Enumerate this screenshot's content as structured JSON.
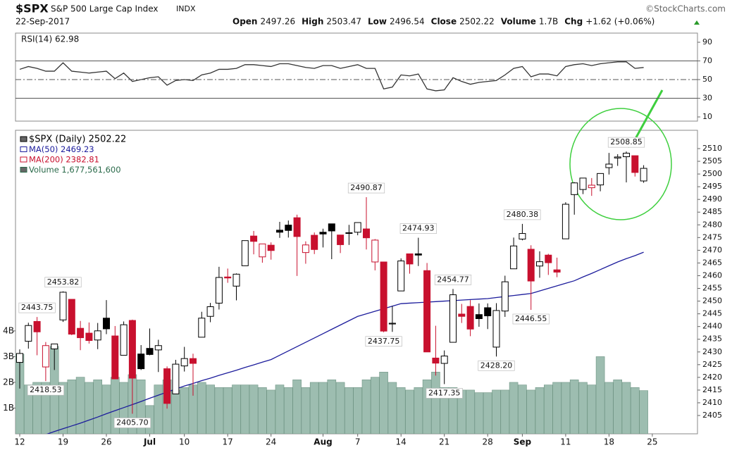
{
  "header": {
    "symbol": "$SPX",
    "name": "S&P 500 Large Cap Index",
    "exchange": "INDX",
    "source": "©StockCharts.com",
    "date": "22-Sep-2017",
    "quote": [
      {
        "label": "Open",
        "value": "2497.26"
      },
      {
        "label": "High",
        "value": "2503.47"
      },
      {
        "label": "Low",
        "value": "2496.54"
      },
      {
        "label": "Close",
        "value": "2502.22"
      },
      {
        "label": "Volume",
        "value": "1.7B"
      },
      {
        "label": "Chg",
        "value": "+1.62 (+0.06%)"
      }
    ]
  },
  "chart_data": {
    "type": "candlestick",
    "rsi_title": "RSI(14) 62.98",
    "legend": [
      "$SPX (Daily) 2502.22",
      "MA(50) 2469.23",
      "MA(200) 2382.81",
      "Volume 1,677,561,600"
    ],
    "categories": [
      "12",
      null,
      null,
      null,
      null,
      "19",
      null,
      null,
      null,
      null,
      "26",
      null,
      null,
      null,
      null,
      "Jul",
      null,
      null,
      null,
      "10",
      null,
      null,
      null,
      null,
      "17",
      null,
      null,
      null,
      null,
      "24",
      null,
      null,
      null,
      null,
      null,
      "Aug",
      null,
      null,
      null,
      "7",
      null,
      null,
      null,
      null,
      "14",
      null,
      null,
      null,
      null,
      "21",
      null,
      null,
      null,
      null,
      "28",
      null,
      null,
      null,
      "Sep",
      null,
      null,
      null,
      null,
      "11",
      null,
      null,
      null,
      null,
      "18",
      null,
      null,
      null,
      null,
      "25"
    ],
    "open": [
      2425.9,
      2434.2,
      2442.0,
      2424.1,
      2431.2,
      2442.6,
      2450.7,
      2439.3,
      2437.4,
      2434.7,
      2443.3,
      2436.3,
      2428.7,
      2442.4,
      2429.2,
      2431.4,
      2430.8,
      2423.4,
      2413.5,
      2424.5,
      2427.4,
      2435.8,
      2444.0,
      2449.2,
      2459.5,
      2455.9,
      2463.9,
      2475.6,
      2467.4,
      2472.0,
      2477.9,
      2479.9,
      2482.8,
      2469.1,
      2475.9,
      2477.1,
      2480.4,
      2476.0,
      2476.9,
      2477.1,
      2478.4,
      2465.4,
      2465.4,
      2441.0,
      2454.0,
      2468.6,
      2468.6,
      2462.0,
      2427.6,
      2425.5,
      2433.8,
      2444.9,
      2447.9,
      2444.7,
      2447.4,
      2431.9,
      2446.1,
      2462.7,
      2474.4,
      2470.4,
      2463.8,
      2468.1,
      2462.3,
      2474.5,
      2491.9,
      2493.9,
      2494.6,
      2495.7,
      2502.5,
      2506.3,
      2506.8,
      2507.2,
      2497.26,
      null
    ],
    "high": [
      2431.0,
      2441.5,
      2443.75,
      2433.9,
      2433.2,
      2453.82,
      2450.7,
      2442.2,
      2441.6,
      2441.4,
      2450.4,
      2440.2,
      2442.0,
      2442.7,
      2432.7,
      2439.2,
      2434.8,
      2424.3,
      2426.9,
      2432.0,
      2429.3,
      2445.8,
      2449.3,
      2463.5,
      2462.8,
      2460.9,
      2473.8,
      2477.6,
      2472.5,
      2473.1,
      2481.2,
      2481.7,
      2484.0,
      2473.5,
      2477.0,
      2478.5,
      2480.4,
      2476.0,
      2480.0,
      2480.9,
      2490.87,
      2474.4,
      2465.4,
      2448.1,
      2466.8,
      2468.6,
      2474.93,
      2465.0,
      2440.3,
      2430.6,
      2454.77,
      2448.9,
      2450.4,
      2449.1,
      2449.1,
      2449.2,
      2460.0,
      2475.0,
      2480.38,
      2471.97,
      2469.6,
      2468.6,
      2467.1,
      2488.9,
      2496.8,
      2498.4,
      2498.4,
      2500.2,
      2508.3,
      2507.8,
      2508.85,
      2507.2,
      2503.47,
      null
    ],
    "low": [
      2415.6,
      2431.3,
      2428.7,
      2418.53,
      2422.9,
      2441.8,
      2436.6,
      2430.7,
      2433.3,
      2431.1,
      2437.0,
      2419.4,
      2428.7,
      2405.7,
      2422.9,
      2428.7,
      2422.1,
      2407.7,
      2413.5,
      2422.3,
      2412.8,
      2435.8,
      2441.7,
      2446.7,
      2457.2,
      2450.3,
      2463.9,
      2468.4,
      2465.1,
      2466.3,
      2474.9,
      2475.0,
      2459.9,
      2464.7,
      2468.5,
      2471.1,
      2466.5,
      2468.9,
      2472.1,
      2475.9,
      2470.3,
      2462.1,
      2437.75,
      2437.9,
      2454.0,
      2460.8,
      2463.8,
      2430.0,
      2420.7,
      2417.35,
      2433.7,
      2441.4,
      2436.2,
      2439.9,
      2439.0,
      2428.2,
      2443.8,
      2462.7,
      2473.9,
      2446.55,
      2459.2,
      2460.3,
      2459.4,
      2474.5,
      2484.0,
      2492.1,
      2491.4,
      2493.2,
      2499.8,
      2503.2,
      2496.7,
      2499.0,
      2496.54,
      null
    ],
    "close": [
      2429.4,
      2440.4,
      2437.9,
      2432.5,
      2433.15,
      2453.5,
      2437.0,
      2435.6,
      2434.5,
      2438.3,
      2439.1,
      2419.4,
      2440.7,
      2419.7,
      2423.4,
      2429.0,
      2432.5,
      2409.75,
      2425.2,
      2427.4,
      2425.5,
      2443.3,
      2447.8,
      2459.3,
      2459.1,
      2460.6,
      2473.8,
      2473.5,
      2472.5,
      2469.9,
      2477.1,
      2477.8,
      2475.4,
      2472.1,
      2470.3,
      2476.4,
      2477.6,
      2472.2,
      2476.8,
      2480.9,
      2474.9,
      2474.0,
      2438.2,
      2441.3,
      2465.8,
      2464.6,
      2468.1,
      2430.0,
      2425.6,
      2428.4,
      2452.5,
      2444.0,
      2439.0,
      2443.1,
      2444.2,
      2446.3,
      2457.6,
      2471.7,
      2476.6,
      2457.9,
      2465.5,
      2465.1,
      2461.4,
      2488.1,
      2496.5,
      2498.4,
      2495.6,
      2500.2,
      2503.9,
      2506.7,
      2508.2,
      2500.6,
      2502.22,
      null
    ],
    "volume": [
      3.1,
      1.9,
      2.0,
      2.0,
      3.4,
      2.0,
      2.1,
      2.2,
      2.0,
      2.1,
      1.9,
      2.2,
      2.0,
      2.3,
      2.1,
      1.1,
      1.9,
      2.1,
      1.7,
      1.8,
      1.9,
      2.0,
      1.9,
      1.8,
      1.8,
      1.9,
      1.9,
      1.9,
      1.8,
      1.7,
      1.9,
      1.8,
      2.1,
      1.8,
      2.0,
      2.0,
      2.1,
      2.0,
      1.8,
      1.8,
      2.1,
      2.2,
      2.4,
      2.0,
      1.8,
      1.7,
      1.8,
      2.1,
      2.4,
      1.8,
      1.8,
      1.7,
      1.7,
      1.6,
      1.6,
      1.7,
      1.7,
      2.0,
      1.9,
      1.7,
      1.8,
      1.9,
      2.0,
      2.0,
      2.1,
      2.0,
      1.9,
      3.0,
      2.0,
      2.1,
      2.0,
      1.8,
      1.68,
      null
    ],
    "ma50": [
      2394,
      2395.2,
      2396.4,
      2397.5,
      2398.7,
      2399.8,
      2400.9,
      2402,
      2403.2,
      2404.4,
      2405.7,
      2406.9,
      2408.1,
      2409.3,
      2410.5,
      2411.8,
      2413,
      2414.2,
      2415.4,
      2416.6,
      2417.6,
      2418.7,
      2419.7,
      2420.8,
      2421.8,
      2422.8,
      2423.9,
      2424.9,
      2426,
      2427,
      2428.7,
      2430.4,
      2432.1,
      2433.8,
      2435.5,
      2437.2,
      2438.9,
      2440.6,
      2442.3,
      2444,
      2445,
      2446,
      2447,
      2448,
      2449,
      2449.2,
      2449.4,
      2449.6,
      2449.8,
      2450,
      2450.2,
      2450.4,
      2450.6,
      2450.8,
      2451,
      2451.4,
      2451.8,
      2452.2,
      2452.6,
      2453,
      2454,
      2455,
      2456,
      2457,
      2458,
      2459.5,
      2460.9,
      2462.4,
      2463.9,
      2465.4,
      2466.7,
      2467.9,
      2469.23,
      null
    ],
    "rsi": [
      61,
      64,
      62,
      59,
      59,
      68,
      59,
      58,
      57,
      58,
      59,
      51,
      57,
      48,
      50,
      52,
      53,
      44,
      49,
      50,
      49,
      55,
      57,
      61,
      61,
      62,
      66,
      66,
      65,
      64,
      67,
      67,
      65,
      63,
      62,
      65,
      65,
      62,
      64,
      66,
      62,
      62,
      40,
      42,
      55,
      54,
      56,
      40,
      38,
      39,
      52,
      48,
      45,
      47,
      48,
      49,
      55,
      62,
      64,
      53,
      56,
      56,
      54,
      64,
      66,
      67,
      65,
      67,
      68,
      69,
      69,
      62,
      62.98,
      null
    ],
    "colors": {
      "up": "#000000",
      "down": "#c8102e",
      "ma50": "#1c1c9c",
      "ma200": "#c8102e",
      "volume": "#9dbdb0",
      "volume_edge": "#6f9484"
    },
    "ylim": [
      2397.8,
      2517.2
    ],
    "yticks": [
      2405,
      2410,
      2415,
      2420,
      2425,
      2430,
      2435,
      2440,
      2445,
      2450,
      2455,
      2460,
      2465,
      2470,
      2475,
      2480,
      2485,
      2490,
      2495,
      2500,
      2505,
      2510
    ],
    "y2lim": [
      0,
      11.8
    ],
    "y2ticks": [
      {
        "value": 1,
        "label": "1B"
      },
      {
        "value": 2,
        "label": "2B"
      },
      {
        "value": 3,
        "label": "3B"
      },
      {
        "value": 4,
        "label": "4B"
      }
    ],
    "rsi_ylim": [
      5.5,
      99.8
    ],
    "rsi_ticks": [
      10,
      30,
      50,
      70,
      90
    ],
    "rsi_lines": [
      {
        "value": 70,
        "style": "solid"
      },
      {
        "value": 50,
        "style": "dashdot"
      },
      {
        "value": 30,
        "style": "solid"
      }
    ],
    "annotations": [
      {
        "value": 2443.75,
        "label": "2443.75"
      },
      {
        "value": 2418.53,
        "label": "2418.53"
      },
      {
        "value": 2453.82,
        "label": "2453.82"
      },
      {
        "value": 2405.7,
        "label": "2405.70"
      },
      {
        "value": 2490.87,
        "label": "2490.87"
      },
      {
        "value": 2437.75,
        "label": "2437.75"
      },
      {
        "value": 2474.93,
        "label": "2474.93"
      },
      {
        "value": 2417.35,
        "label": "2417.35"
      },
      {
        "value": 2454.77,
        "label": "2454.77"
      },
      {
        "value": 2428.2,
        "label": "2428.20"
      },
      {
        "value": 2480.38,
        "label": "2480.38"
      },
      {
        "value": 2446.55,
        "label": "2446.55"
      },
      {
        "value": 2508.85,
        "label": "2508.85"
      }
    ]
  }
}
